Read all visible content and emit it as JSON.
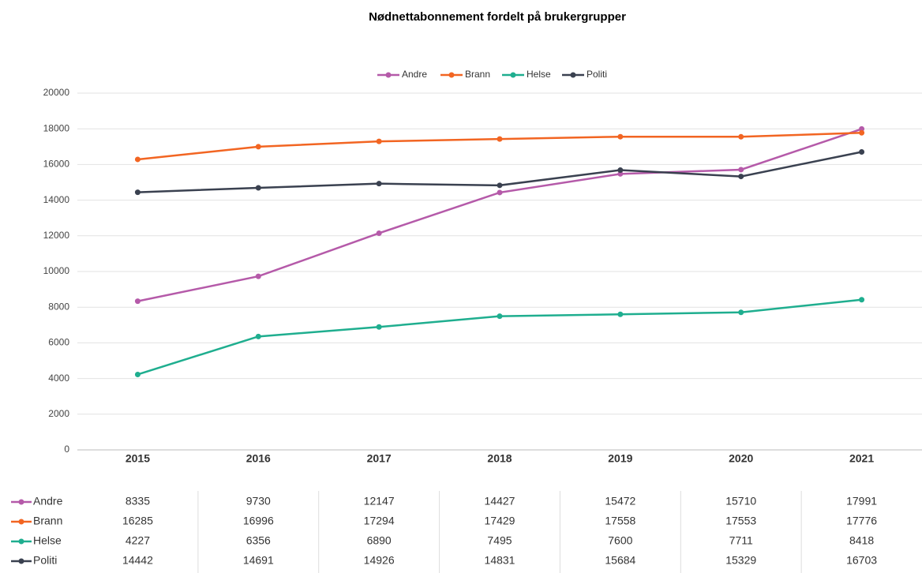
{
  "chart_data": {
    "type": "line",
    "title": "Nødnettabonnement fordelt på brukergrupper",
    "categories": [
      "2015",
      "2016",
      "2017",
      "2018",
      "2019",
      "2020",
      "2021"
    ],
    "series": [
      {
        "name": "Andre",
        "color": "#b55aa9",
        "values": [
          8335,
          9730,
          12147,
          14427,
          15472,
          15710,
          17991
        ]
      },
      {
        "name": "Brann",
        "color": "#f26522",
        "values": [
          16285,
          16996,
          17294,
          17429,
          17558,
          17553,
          17776
        ]
      },
      {
        "name": "Helse",
        "color": "#1fae8f",
        "values": [
          4227,
          6356,
          6890,
          7495,
          7600,
          7711,
          8418
        ]
      },
      {
        "name": "Politi",
        "color": "#3a4150",
        "values": [
          14442,
          14691,
          14926,
          14831,
          15684,
          15329,
          16703
        ]
      }
    ],
    "ylim": [
      0,
      20000
    ],
    "yticks": [
      0,
      2000,
      4000,
      6000,
      8000,
      10000,
      12000,
      14000,
      16000,
      18000,
      20000
    ],
    "grid": true,
    "legend": "top"
  }
}
